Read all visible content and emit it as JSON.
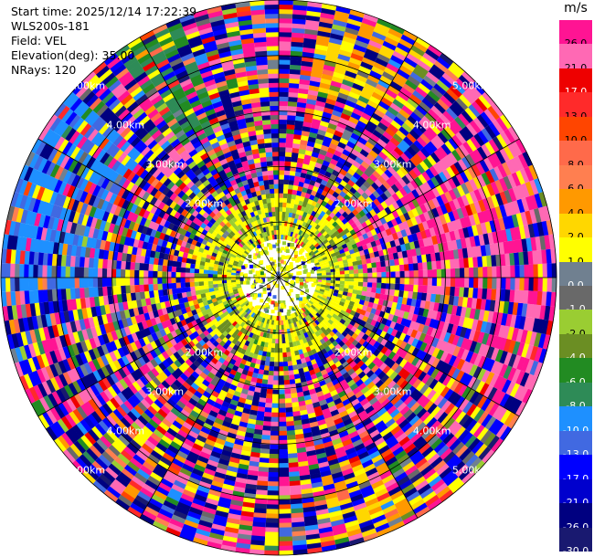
{
  "info": {
    "start_time": "Start time: 2025/12/14 17:22:39",
    "instrument": "WLS200s-181",
    "field": "Field: VEL",
    "elevation": "Elevation(deg): 35.00",
    "nrays": "NRays: 120"
  },
  "chart_data": {
    "type": "heatmap",
    "projection": "polar-ppi",
    "n_rays": 120,
    "field": "VEL",
    "unit": "m/s",
    "range_rings_km": [
      1,
      2,
      3,
      4,
      5
    ],
    "range_ring_labels": [
      "2.00km",
      "3.00km",
      "4.00km",
      "5.00km"
    ],
    "colorbar": {
      "unit": "m/s",
      "tick_labels": [
        "26.0",
        "21.0",
        "17.0",
        "13.0",
        "10.0",
        "8.0",
        "6.0",
        "4.0",
        "2.0",
        "1.0",
        "0.0",
        "-1.0",
        "-2.0",
        "-4.0",
        "-6.0",
        "-8.0",
        "-10.0",
        "-13.0",
        "-17.0",
        "-21.0",
        "-26.0",
        "-30.0"
      ],
      "colors": [
        "#ff1493",
        "#ff69b4",
        "#ee0000",
        "#ff2a2a",
        "#ff4500",
        "#ff6a4a",
        "#ff7f50",
        "#ff9900",
        "#ffd700",
        "#ffff00",
        "#708090",
        "#696969",
        "#9acd32",
        "#6b8e23",
        "#228b22",
        "#2e8b57",
        "#1e90ff",
        "#4169e1",
        "#0000ff",
        "#0000cd",
        "#000080",
        "#191970"
      ]
    }
  }
}
